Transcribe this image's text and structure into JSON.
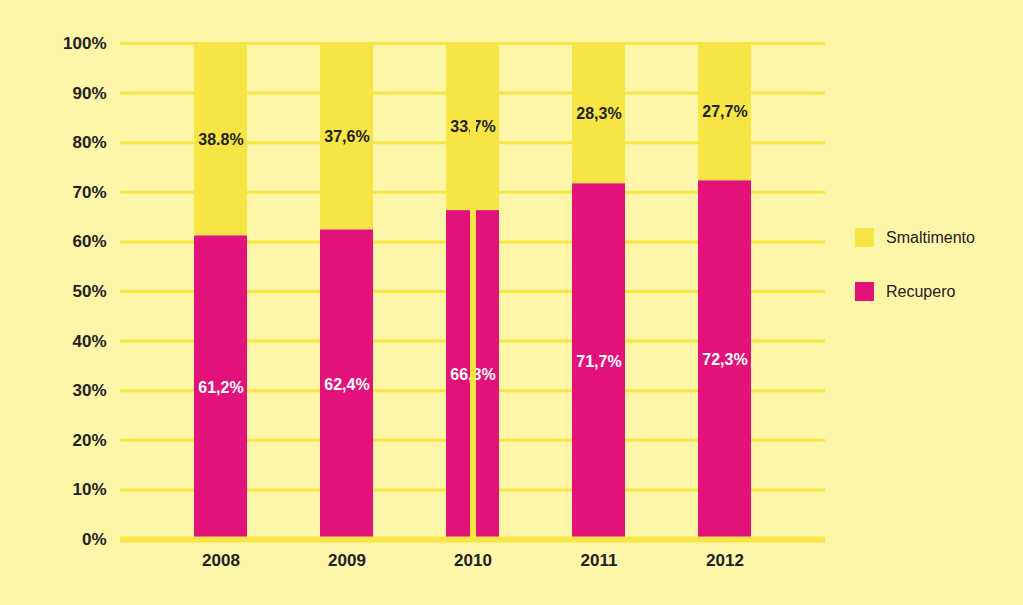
{
  "chart_data": {
    "type": "bar",
    "stacked": true,
    "data_labels": true,
    "grid": true,
    "legend": "right",
    "categories": [
      "2008",
      "2009",
      "2010",
      "2011",
      "2012"
    ],
    "series": [
      {
        "name": "Smaltimento",
        "color": "#f6e545",
        "values": [
          38.8,
          37.6,
          33.7,
          28.3,
          27.7
        ],
        "value_labels": [
          "38.8%",
          "37,6%",
          "33,7%",
          "28,3%",
          "27,7%"
        ]
      },
      {
        "name": "Recupero",
        "color": "#e2127a",
        "values": [
          61.2,
          62.4,
          66.3,
          71.7,
          72.3
        ],
        "value_labels": [
          "61,2%",
          "62,4%",
          "66,3%",
          "71,7%",
          "72,3%"
        ]
      }
    ],
    "ylim": [
      0,
      100
    ],
    "yticks": [
      {
        "value": 0,
        "label": "0%"
      },
      {
        "value": 10,
        "label": "10%"
      },
      {
        "value": 20,
        "label": "20%"
      },
      {
        "value": 30,
        "label": "30%"
      },
      {
        "value": 40,
        "label": "40%"
      },
      {
        "value": 50,
        "label": "50%"
      },
      {
        "value": 60,
        "label": "60%"
      },
      {
        "value": 70,
        "label": "70%"
      },
      {
        "value": 80,
        "label": "80%"
      },
      {
        "value": 90,
        "label": "90%"
      },
      {
        "value": 100,
        "label": "100%"
      }
    ]
  }
}
